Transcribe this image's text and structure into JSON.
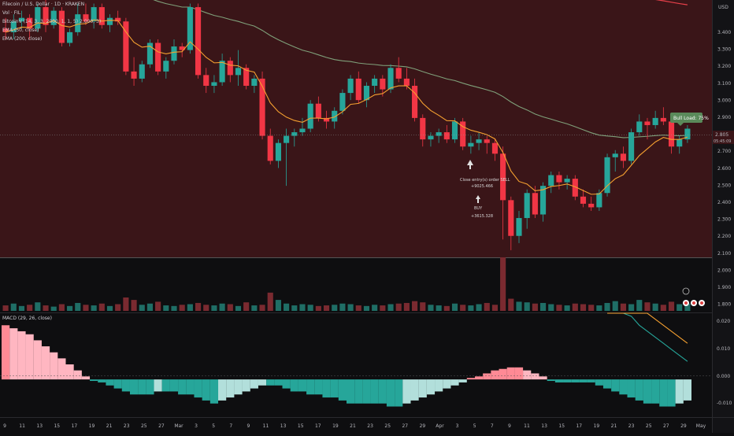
{
  "header": {
    "symbol_line": "Filecoin / U.S. Dollar · 1D · KRAKEN",
    "indicators": [
      "Vol · FIL",
      "BitcoinV (14, 3, 3, 2000, 1, 1, 5) 2.000, 3) ",
      "EMA (50, close)",
      "EMA (200, close)"
    ]
  },
  "price_pane": {
    "currency": "USD",
    "price_ticks": [
      "3.400",
      "3.300",
      "3.200",
      "3.100",
      "3.000",
      "2.900",
      "2.800",
      "2.700",
      "2.600",
      "2.500",
      "2.400",
      "2.300",
      "2.200",
      "2.100",
      "2.000",
      "1.900",
      "1.800"
    ],
    "last_price_label": "2.805",
    "countdown_label": "05:45:09",
    "colors": {
      "bull": "#26a69a",
      "bear": "#f23645",
      "background": "#3a1518",
      "ema_short": "#f5a030",
      "ema_50": "#7fa07a",
      "ema_200": "#e8404a"
    }
  },
  "annotations": {
    "bull_label": "Bull Load: 75%",
    "close_entry": "Close entry(s) order SELL",
    "close_entry_pnl": "+9025.466",
    "buy_label": "BUY",
    "buy_pnl": "+3615.328"
  },
  "macd_pane": {
    "title": "MACD (29, 26, close)",
    "ticks": [
      "0.020",
      "0.010",
      "0.000",
      "-0.010"
    ],
    "colors": {
      "pos_strong": "#ffb6c1",
      "pos_weak": "#ff8a95",
      "neg_strong": "#26a69a",
      "neg_weak": "#b2dfdb",
      "macd_line": "#26a69a",
      "signal_line": "#f5a030"
    }
  },
  "time_axis": {
    "labels": [
      "9",
      "11",
      "13",
      "15",
      "17",
      "19",
      "21",
      "23",
      "25",
      "27",
      "Mar",
      "3",
      "5",
      "7",
      "9",
      "11",
      "13",
      "15",
      "17",
      "19",
      "21",
      "23",
      "25",
      "27",
      "29",
      "Apr",
      "3",
      "5",
      "7",
      "9",
      "11",
      "13",
      "15",
      "17",
      "19",
      "21",
      "23",
      "25",
      "27",
      "29",
      "May"
    ]
  },
  "chart_data": {
    "type": "candlestick",
    "title": "",
    "series_order": "oldest to newest, one bar per day",
    "candles": [
      [
        3.36,
        3.42,
        3.3,
        3.34
      ],
      [
        3.34,
        3.44,
        3.3,
        3.4
      ],
      [
        3.4,
        3.46,
        3.36,
        3.42
      ],
      [
        3.42,
        3.44,
        3.3,
        3.36
      ],
      [
        3.36,
        3.5,
        3.34,
        3.48
      ],
      [
        3.48,
        3.52,
        3.34,
        3.38
      ],
      [
        3.38,
        3.48,
        3.36,
        3.46
      ],
      [
        3.46,
        3.48,
        3.26,
        3.28
      ],
      [
        3.28,
        3.36,
        3.26,
        3.34
      ],
      [
        3.34,
        3.5,
        3.32,
        3.44
      ],
      [
        3.44,
        3.5,
        3.38,
        3.4
      ],
      [
        3.4,
        3.5,
        3.36,
        3.48
      ],
      [
        3.48,
        3.5,
        3.36,
        3.38
      ],
      [
        3.38,
        3.44,
        3.34,
        3.42
      ],
      [
        3.42,
        3.46,
        3.38,
        3.4
      ],
      [
        3.4,
        3.42,
        3.1,
        3.12
      ],
      [
        3.12,
        3.2,
        3.04,
        3.08
      ],
      [
        3.08,
        3.18,
        3.06,
        3.16
      ],
      [
        3.16,
        3.3,
        3.14,
        3.28
      ],
      [
        3.28,
        3.3,
        3.1,
        3.12
      ],
      [
        3.12,
        3.2,
        3.08,
        3.18
      ],
      [
        3.18,
        3.3,
        3.16,
        3.26
      ],
      [
        3.26,
        3.28,
        3.2,
        3.24
      ],
      [
        3.24,
        3.5,
        3.22,
        3.48
      ],
      [
        3.48,
        3.5,
        3.08,
        3.1
      ],
      [
        3.1,
        3.14,
        3.0,
        3.04
      ],
      [
        3.04,
        3.1,
        3.0,
        3.06
      ],
      [
        3.06,
        3.22,
        3.04,
        3.18
      ],
      [
        3.18,
        3.2,
        3.06,
        3.1
      ],
      [
        3.1,
        3.24,
        3.04,
        3.14
      ],
      [
        3.14,
        3.16,
        3.02,
        3.04
      ],
      [
        3.04,
        3.1,
        3.0,
        3.08
      ],
      [
        3.08,
        3.12,
        2.74,
        2.76
      ],
      [
        2.76,
        2.8,
        2.6,
        2.62
      ],
      [
        2.62,
        2.74,
        2.58,
        2.72
      ],
      [
        2.72,
        2.8,
        2.48,
        2.76
      ],
      [
        2.76,
        2.8,
        2.7,
        2.78
      ],
      [
        2.78,
        2.86,
        2.76,
        2.8
      ],
      [
        2.8,
        2.96,
        2.78,
        2.94
      ],
      [
        2.94,
        2.98,
        2.84,
        2.86
      ],
      [
        2.86,
        2.9,
        2.8,
        2.84
      ],
      [
        2.84,
        2.92,
        2.8,
        2.9
      ],
      [
        2.9,
        3.02,
        2.88,
        3.0
      ],
      [
        3.0,
        3.1,
        2.96,
        3.08
      ],
      [
        3.08,
        3.12,
        2.94,
        2.96
      ],
      [
        2.96,
        3.06,
        2.92,
        3.04
      ],
      [
        3.04,
        3.1,
        3.0,
        3.08
      ],
      [
        3.08,
        3.1,
        2.98,
        3.02
      ],
      [
        3.02,
        3.16,
        3.0,
        3.14
      ],
      [
        3.14,
        3.2,
        3.06,
        3.08
      ],
      [
        3.08,
        3.14,
        3.02,
        3.04
      ],
      [
        3.04,
        3.08,
        2.84,
        2.86
      ],
      [
        2.86,
        2.88,
        2.7,
        2.74
      ],
      [
        2.74,
        2.78,
        2.7,
        2.76
      ],
      [
        2.76,
        2.8,
        2.72,
        2.78
      ],
      [
        2.78,
        2.82,
        2.72,
        2.74
      ],
      [
        2.74,
        2.86,
        2.72,
        2.84
      ],
      [
        2.84,
        2.86,
        2.68,
        2.7
      ],
      [
        2.7,
        2.76,
        2.66,
        2.72
      ],
      [
        2.72,
        2.78,
        2.68,
        2.74
      ],
      [
        2.74,
        2.76,
        2.66,
        2.72
      ],
      [
        2.72,
        2.74,
        2.62,
        2.66
      ],
      [
        2.66,
        2.7,
        2.18,
        2.4
      ],
      [
        2.4,
        2.42,
        2.12,
        2.2
      ],
      [
        2.2,
        2.34,
        2.16,
        2.3
      ],
      [
        2.3,
        2.46,
        2.24,
        2.44
      ],
      [
        2.44,
        2.48,
        2.3,
        2.32
      ],
      [
        2.32,
        2.5,
        2.28,
        2.48
      ],
      [
        2.48,
        2.56,
        2.44,
        2.54
      ],
      [
        2.54,
        2.56,
        2.46,
        2.5
      ],
      [
        2.5,
        2.54,
        2.46,
        2.52
      ],
      [
        2.52,
        2.54,
        2.4,
        2.42
      ],
      [
        2.42,
        2.46,
        2.36,
        2.38
      ],
      [
        2.38,
        2.42,
        2.34,
        2.36
      ],
      [
        2.36,
        2.46,
        2.34,
        2.44
      ],
      [
        2.44,
        2.66,
        2.42,
        2.64
      ],
      [
        2.64,
        2.68,
        2.56,
        2.66
      ],
      [
        2.66,
        2.7,
        2.58,
        2.62
      ],
      [
        2.62,
        2.8,
        2.6,
        2.78
      ],
      [
        2.78,
        2.88,
        2.76,
        2.84
      ],
      [
        2.84,
        2.86,
        2.74,
        2.82
      ],
      [
        2.82,
        2.9,
        2.8,
        2.86
      ],
      [
        2.86,
        2.92,
        2.82,
        2.84
      ],
      [
        2.84,
        2.88,
        2.66,
        2.7
      ],
      [
        2.7,
        2.76,
        2.66,
        2.74
      ],
      [
        2.74,
        2.82,
        2.72,
        2.8
      ]
    ],
    "volume": [
      9,
      12,
      8,
      10,
      14,
      9,
      7,
      11,
      8,
      13,
      10,
      9,
      12,
      8,
      11,
      22,
      18,
      10,
      12,
      15,
      9,
      8,
      10,
      11,
      13,
      10,
      9,
      12,
      11,
      8,
      14,
      9,
      10,
      30,
      18,
      12,
      9,
      11,
      10,
      8,
      9,
      10,
      12,
      11,
      9,
      8,
      10,
      9,
      11,
      12,
      13,
      16,
      14,
      10,
      9,
      8,
      12,
      10,
      9,
      11,
      13,
      10,
      88,
      20,
      15,
      14,
      12,
      13,
      11,
      10,
      9,
      12,
      11,
      10,
      9,
      13,
      16,
      12,
      11,
      18,
      14,
      12,
      10,
      15,
      11,
      12
    ],
    "macd_hist": [
      0.018,
      0.017,
      0.016,
      0.015,
      0.013,
      0.011,
      0.009,
      0.007,
      0.005,
      0.003,
      0.001,
      -0.0005,
      -0.001,
      -0.002,
      -0.003,
      -0.004,
      -0.005,
      -0.005,
      -0.005,
      -0.004,
      -0.004,
      -0.004,
      -0.005,
      -0.005,
      -0.006,
      -0.007,
      -0.008,
      -0.007,
      -0.006,
      -0.005,
      -0.004,
      -0.003,
      -0.002,
      -0.002,
      -0.002,
      -0.003,
      -0.004,
      -0.004,
      -0.005,
      -0.005,
      -0.006,
      -0.006,
      -0.007,
      -0.008,
      -0.008,
      -0.008,
      -0.008,
      -0.008,
      -0.009,
      -0.009,
      -0.008,
      -0.007,
      -0.006,
      -0.005,
      -0.004,
      -0.003,
      -0.002,
      -0.001,
      0.0005,
      0.001,
      0.002,
      0.003,
      0.0035,
      0.004,
      0.004,
      0.003,
      0.002,
      0.001,
      -0.0005,
      -0.001,
      -0.001,
      -0.001,
      -0.001,
      -0.001,
      -0.002,
      -0.003,
      -0.004,
      -0.005,
      -0.006,
      -0.007,
      -0.008,
      -0.008,
      -0.009,
      -0.009,
      -0.008,
      -0.007
    ],
    "ylim": [
      2.08,
      3.52
    ],
    "macd_ylim": [
      -0.012,
      0.022
    ],
    "legend_position": "top-left",
    "grid": false
  }
}
